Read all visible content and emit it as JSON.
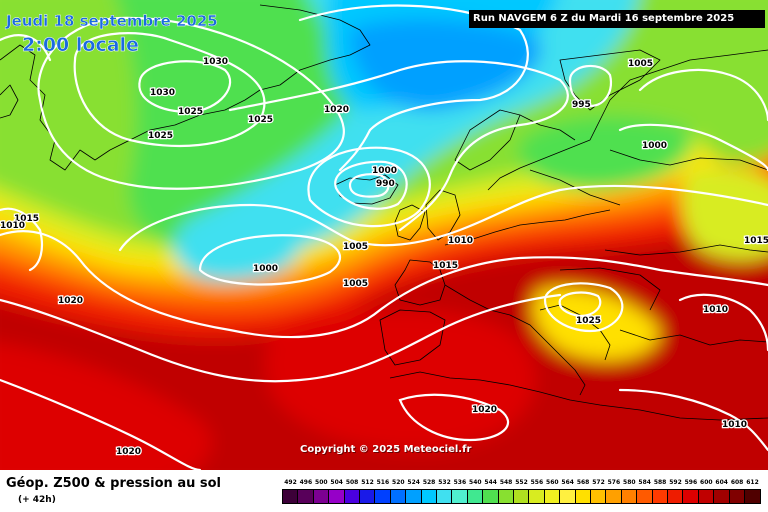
{
  "header": {
    "date_title": "Jeudi 18 septembre 2025",
    "time_title": "2:00 locale",
    "run_info": "Run NAVGEM 6 Z du Mardi 16 septembre 2025"
  },
  "footer": {
    "title": "Géop. Z500 & pression au sol",
    "lead_time": "(+ 42h)",
    "copyright": "Copyright © 2025 Meteociel.fr"
  },
  "legend": {
    "ticks": [
      "492",
      "496",
      "500",
      "504",
      "508",
      "512",
      "516",
      "520",
      "524",
      "528",
      "532",
      "536",
      "540",
      "544",
      "548",
      "552",
      "556",
      "560",
      "564",
      "568",
      "572",
      "576",
      "580",
      "584",
      "588",
      "592",
      "596",
      "600",
      "604",
      "608",
      "612"
    ],
    "colors": [
      "#3c0038",
      "#58005a",
      "#7c0092",
      "#9600c8",
      "#4a00e0",
      "#1a1ae8",
      "#0040ff",
      "#0070ff",
      "#00a0ff",
      "#00c8ff",
      "#40e0f0",
      "#50f0d0",
      "#40e890",
      "#50e050",
      "#88e030",
      "#b0e020",
      "#d8ec20",
      "#f0f020",
      "#fff040",
      "#ffe000",
      "#ffc000",
      "#ffa000",
      "#ff8000",
      "#ff5a00",
      "#ff3a00",
      "#ee1c00",
      "#dd0000",
      "#c00000",
      "#a00000",
      "#800000",
      "#500000"
    ]
  },
  "isobar_labels": [
    {
      "text": "1030"
    },
    {
      "text": "1030"
    },
    {
      "text": "1025"
    },
    {
      "text": "1025"
    },
    {
      "text": "1025"
    },
    {
      "text": "1020"
    },
    {
      "text": "1005"
    },
    {
      "text": "995"
    },
    {
      "text": "1000"
    },
    {
      "text": "1000"
    },
    {
      "text": "990"
    },
    {
      "text": "1015"
    },
    {
      "text": "1010"
    },
    {
      "text": "1010"
    },
    {
      "text": "1005"
    },
    {
      "text": "1000"
    },
    {
      "text": "1005"
    },
    {
      "text": "1015"
    },
    {
      "text": "1015"
    },
    {
      "text": "1020"
    },
    {
      "text": "1025"
    },
    {
      "text": "1010"
    },
    {
      "text": "1020"
    },
    {
      "text": "1020"
    },
    {
      "text": "1010"
    }
  ],
  "colors": {
    "isobar": "#ffffff",
    "coastline": "#000000",
    "title_blue": "#1a6be0"
  }
}
